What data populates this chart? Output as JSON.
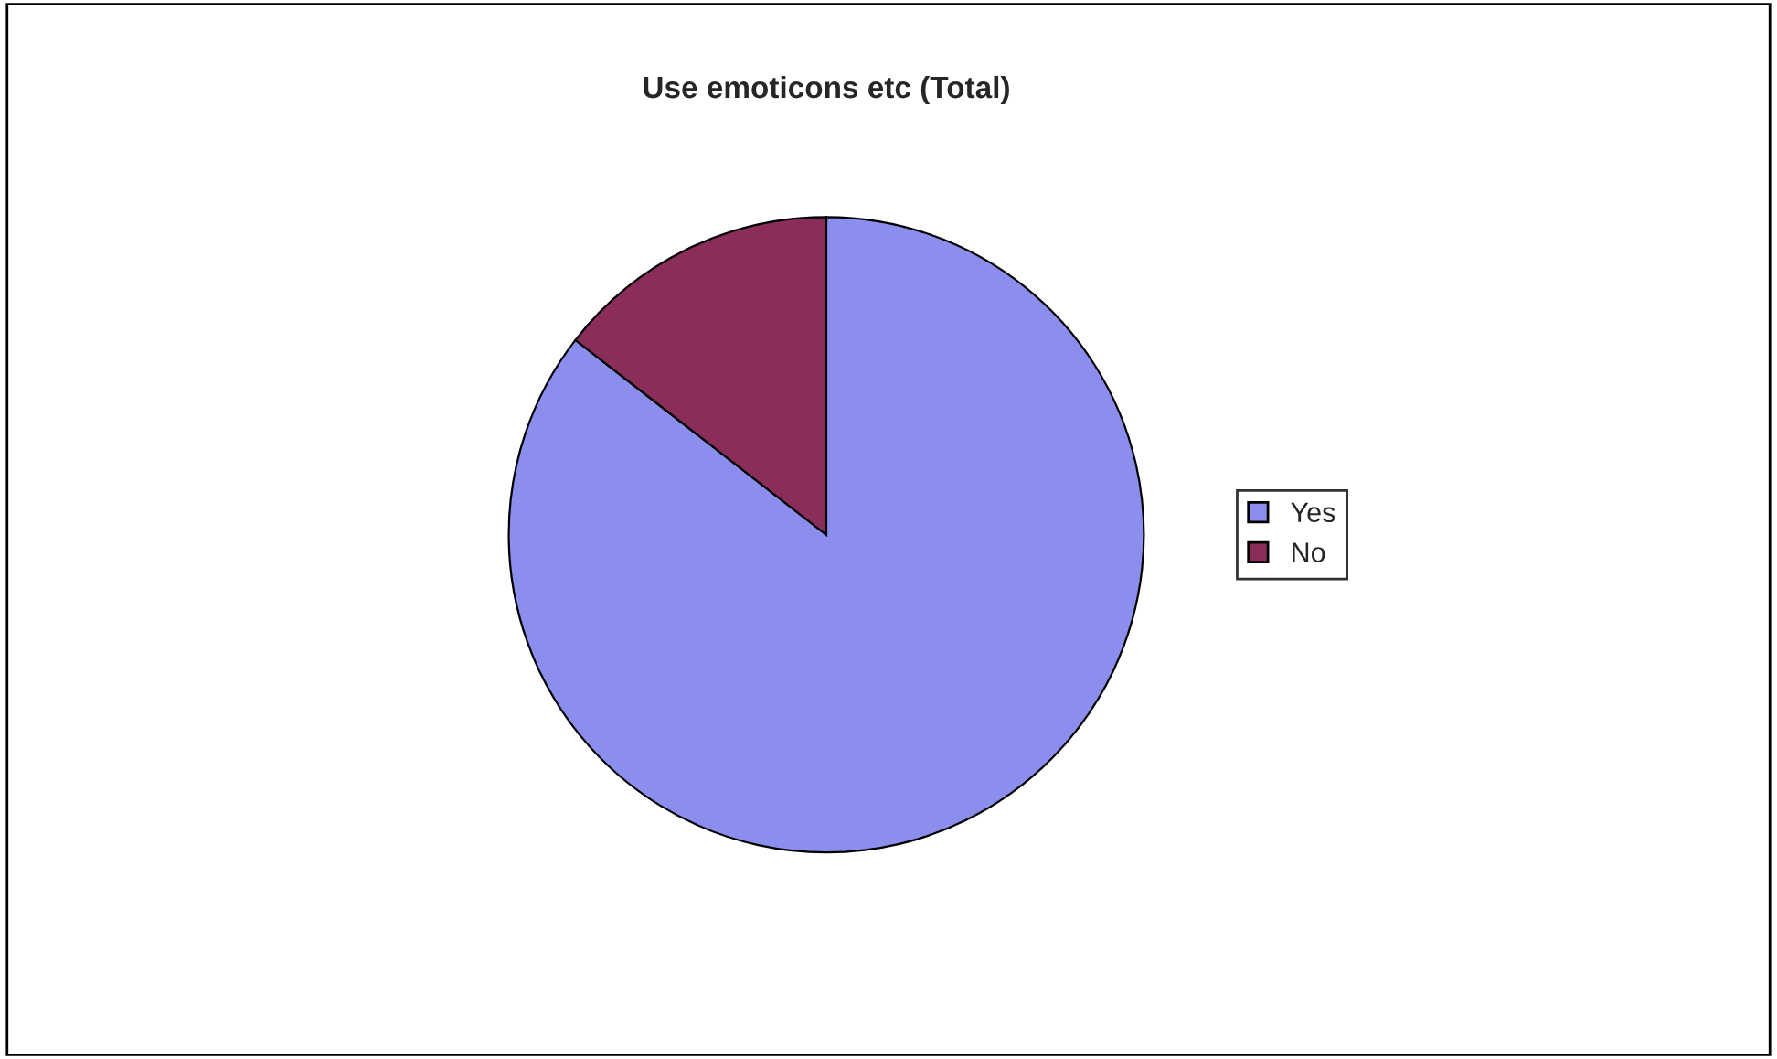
{
  "chart_data": {
    "type": "pie",
    "title": "Use emoticons etc (Total)",
    "categories": [
      "Yes",
      "No"
    ],
    "values": [
      85.5,
      14.5
    ],
    "colors": [
      "#8b8eed",
      "#8b2d5b"
    ],
    "legend": "right"
  }
}
